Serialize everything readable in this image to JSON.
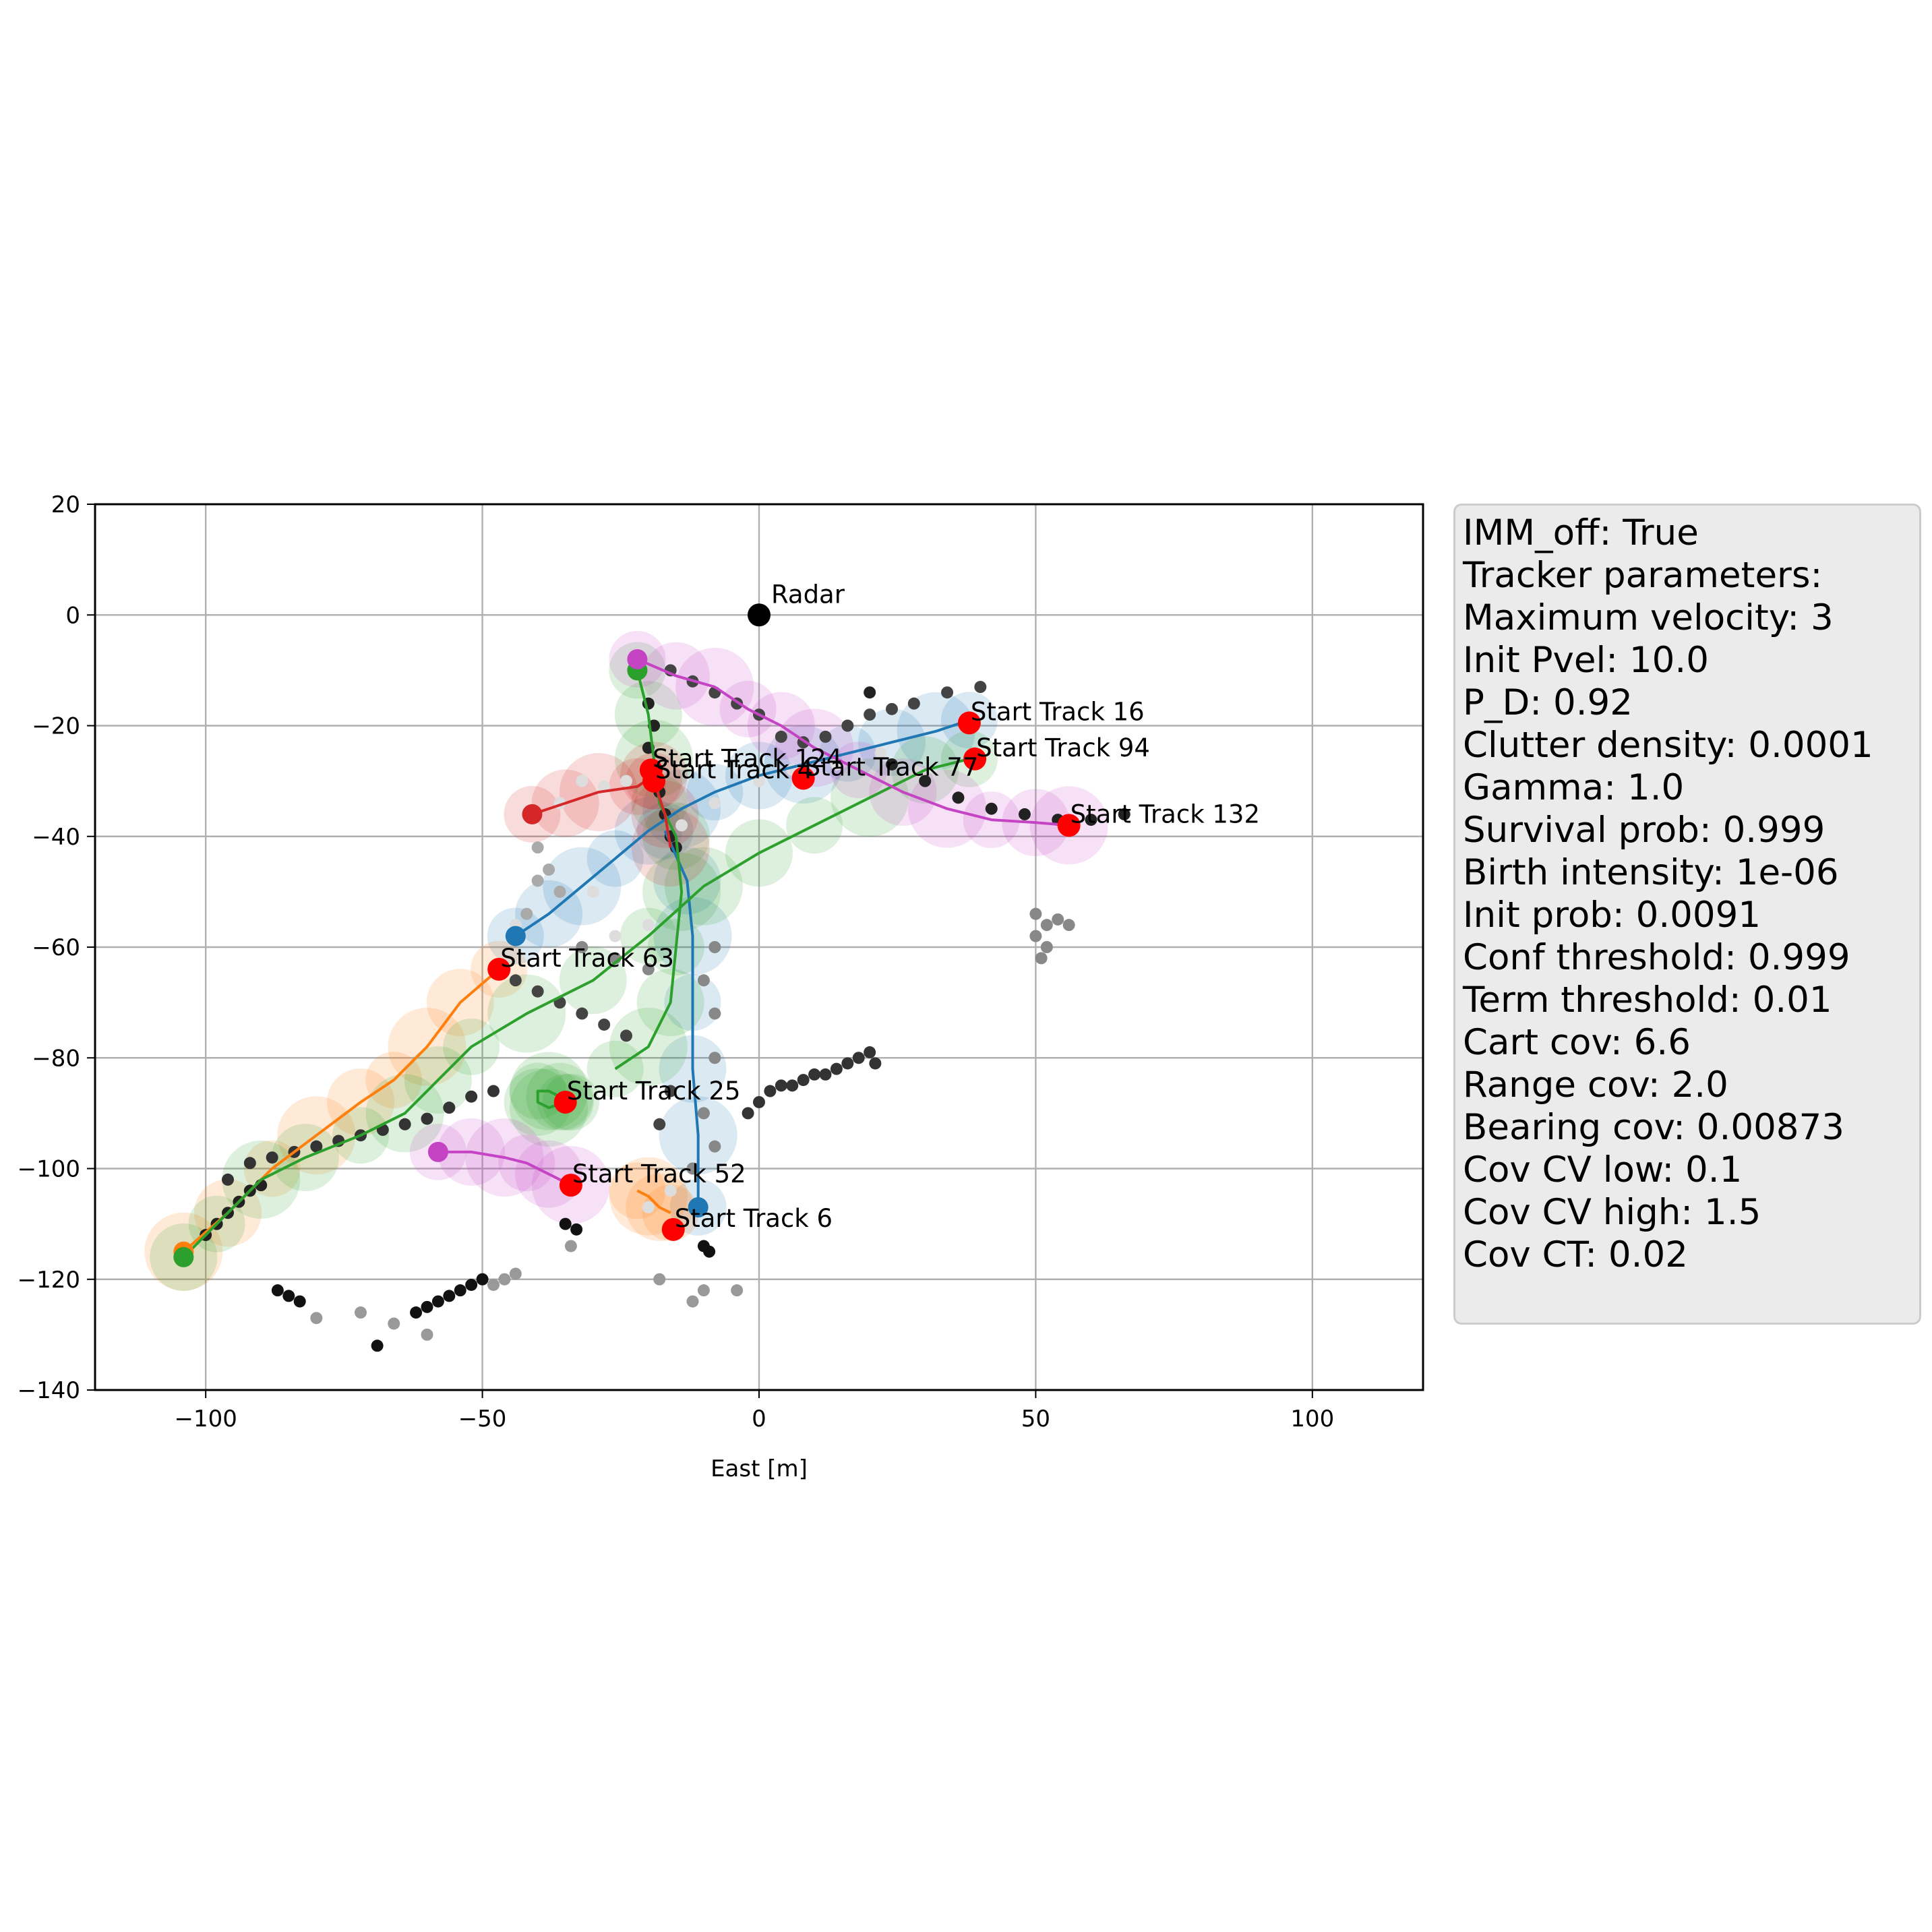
{
  "chart_data": {
    "type": "scatter",
    "title": "",
    "xlabel": "East [m]",
    "ylabel": "",
    "xlim": [
      -120,
      120
    ],
    "ylim": [
      -140,
      20
    ],
    "xticks": [
      -100,
      -50,
      0,
      50,
      100
    ],
    "yticks": [
      20,
      0,
      -20,
      -40,
      -60,
      -80,
      -100,
      -120,
      -140
    ],
    "xtick_labels": [
      "−100",
      "−50",
      "0",
      "50",
      "100"
    ],
    "ytick_labels": [
      "20",
      "0",
      "−20",
      "−40",
      "−60",
      "−80",
      "−100",
      "−120",
      "−140"
    ],
    "grid": true,
    "radar": {
      "label": "Radar",
      "x": 0,
      "y": 0
    },
    "tracks": [
      {
        "color": "#1f77b4",
        "points": [
          [
            -44,
            -58
          ],
          [
            -38,
            -54
          ],
          [
            -32,
            -49
          ],
          [
            -26,
            -44
          ],
          [
            -20,
            -39
          ],
          [
            -14,
            -35
          ],
          [
            -8,
            -32
          ],
          [
            0,
            -29
          ],
          [
            8,
            -27
          ],
          [
            16,
            -25
          ],
          [
            24,
            -23
          ],
          [
            32,
            -21
          ],
          [
            38,
            -19
          ]
        ]
      },
      {
        "color": "#1f77b4",
        "points": [
          [
            -17,
            -39
          ],
          [
            -13,
            -48
          ],
          [
            -12,
            -58
          ],
          [
            -12,
            -70
          ],
          [
            -12,
            -82
          ],
          [
            -11,
            -94
          ],
          [
            -11,
            -107
          ]
        ]
      },
      {
        "color": "#ff7f0e",
        "points": [
          [
            -47,
            -64
          ],
          [
            -54,
            -70
          ],
          [
            -60,
            -78
          ],
          [
            -66,
            -84
          ],
          [
            -72,
            -88
          ],
          [
            -80,
            -94
          ],
          [
            -88,
            -100
          ],
          [
            -96,
            -108
          ],
          [
            -104,
            -115
          ]
        ]
      },
      {
        "color": "#ff7f0e",
        "points": [
          [
            -16,
            -108
          ],
          [
            -18,
            -107
          ],
          [
            -20,
            -105
          ],
          [
            -22,
            -104
          ]
        ]
      },
      {
        "color": "#2ca02c",
        "points": [
          [
            -22,
            -10
          ],
          [
            -20,
            -18
          ],
          [
            -19,
            -26
          ],
          [
            -18,
            -34
          ],
          [
            -15,
            -40
          ],
          [
            -14,
            -50
          ],
          [
            -15,
            -60
          ],
          [
            -16,
            -70
          ],
          [
            -20,
            -78
          ],
          [
            -26,
            -82
          ]
        ]
      },
      {
        "color": "#2ca02c",
        "points": [
          [
            38,
            -26
          ],
          [
            30,
            -28
          ],
          [
            20,
            -33
          ],
          [
            10,
            -38
          ],
          [
            0,
            -43
          ],
          [
            -10,
            -49
          ],
          [
            -20,
            -58
          ],
          [
            -30,
            -66
          ],
          [
            -42,
            -72
          ],
          [
            -52,
            -78
          ],
          [
            -58,
            -84
          ],
          [
            -64,
            -90
          ],
          [
            -72,
            -94
          ],
          [
            -82,
            -98
          ],
          [
            -90,
            -102
          ],
          [
            -98,
            -110
          ],
          [
            -104,
            -116
          ]
        ]
      },
      {
        "color": "#2ca02c",
        "points": [
          [
            -34,
            -88
          ],
          [
            -36,
            -87
          ],
          [
            -38,
            -86
          ],
          [
            -40,
            -86
          ],
          [
            -40,
            -88
          ],
          [
            -38,
            -89
          ],
          [
            -35,
            -88
          ]
        ]
      },
      {
        "color": "#d62728",
        "points": [
          [
            -41,
            -36
          ],
          [
            -35,
            -34
          ],
          [
            -29,
            -32
          ],
          [
            -22,
            -31
          ],
          [
            -19,
            -29
          ]
        ]
      },
      {
        "color": "#d62728",
        "points": [
          [
            -19,
            -30
          ],
          [
            -17,
            -36
          ],
          [
            -16,
            -42
          ]
        ]
      },
      {
        "color": "#c444c4",
        "points": [
          [
            -22,
            -8
          ],
          [
            -15,
            -11
          ],
          [
            -8,
            -13
          ],
          [
            -2,
            -17
          ],
          [
            4,
            -20
          ],
          [
            10,
            -24
          ],
          [
            18,
            -28
          ],
          [
            26,
            -32
          ],
          [
            34,
            -35
          ],
          [
            42,
            -37
          ],
          [
            50,
            -37.5
          ],
          [
            56,
            -38
          ]
        ]
      },
      {
        "color": "#c444c4",
        "points": [
          [
            -58,
            -97
          ],
          [
            -52,
            -97
          ],
          [
            -46,
            -98
          ],
          [
            -42,
            -99
          ],
          [
            -38,
            -101
          ],
          [
            -34,
            -103
          ]
        ]
      }
    ],
    "track_end_markers": [
      {
        "color": "#1f77b4",
        "x": -44,
        "y": -58
      },
      {
        "color": "#1f77b4",
        "x": -11,
        "y": -107
      },
      {
        "color": "#ff7f0e",
        "x": -104,
        "y": -115
      },
      {
        "color": "#2ca02c",
        "x": -22,
        "y": -10
      },
      {
        "color": "#2ca02c",
        "x": -104,
        "y": -116
      },
      {
        "color": "#d62728",
        "x": -41,
        "y": -36
      },
      {
        "color": "#c444c4",
        "x": -22,
        "y": -8
      },
      {
        "color": "#c444c4",
        "x": -58,
        "y": -97
      }
    ],
    "track_starts": [
      {
        "label": "Start Track 16",
        "x": 38,
        "y": -19.5
      },
      {
        "label": "Start Track 94",
        "x": 39,
        "y": -26
      },
      {
        "label": "Start Track 124",
        "x": -19.5,
        "y": -28
      },
      {
        "label": "Start Track 4",
        "x": -19,
        "y": -30
      },
      {
        "label": "Start Track 77",
        "x": 8,
        "y": -29.5
      },
      {
        "label": "Start Track 132",
        "x": 56,
        "y": -38
      },
      {
        "label": "Start Track 63",
        "x": -47,
        "y": -64
      },
      {
        "label": "Start Track 25",
        "x": -35,
        "y": -88
      },
      {
        "label": "Start Track 52",
        "x": -34,
        "y": -103
      },
      {
        "label": "Start Track 6",
        "x": -15.5,
        "y": -111
      }
    ],
    "measurement_clusters": [
      {
        "shade": "#222222",
        "points": [
          [
            -20,
            -16
          ],
          [
            -19,
            -20
          ],
          [
            -20,
            -24
          ],
          [
            -19,
            -28
          ],
          [
            -18,
            -32
          ],
          [
            -17,
            -36
          ],
          [
            -16,
            -40
          ],
          [
            -15,
            -42
          ]
        ]
      },
      {
        "shade": "#444444",
        "points": [
          [
            -16,
            -10
          ],
          [
            -12,
            -12
          ],
          [
            -8,
            -14
          ],
          [
            -4,
            -16
          ],
          [
            0,
            -18
          ],
          [
            4,
            -22
          ],
          [
            8,
            -23
          ],
          [
            12,
            -22
          ],
          [
            16,
            -20
          ],
          [
            20,
            -18
          ],
          [
            24,
            -17
          ],
          [
            28,
            -16
          ],
          [
            34,
            -14
          ],
          [
            40,
            -13
          ]
        ]
      },
      {
        "shade": "#222222",
        "points": [
          [
            20,
            -14
          ],
          [
            24,
            -27
          ],
          [
            30,
            -30
          ],
          [
            36,
            -33
          ],
          [
            42,
            -35
          ],
          [
            48,
            -36
          ],
          [
            54,
            -37
          ],
          [
            60,
            -37
          ],
          [
            66,
            -36
          ]
        ]
      },
      {
        "shade": "#aaaaaa",
        "points": [
          [
            -40,
            -42
          ],
          [
            -38,
            -46
          ],
          [
            -36,
            -50
          ],
          [
            -42,
            -54
          ],
          [
            -40,
            -48
          ]
        ]
      },
      {
        "shade": "#888888",
        "points": [
          [
            50,
            -54
          ],
          [
            52,
            -56
          ],
          [
            54,
            -55
          ],
          [
            56,
            -56
          ],
          [
            50,
            -58
          ],
          [
            52,
            -60
          ],
          [
            51,
            -62
          ]
        ]
      },
      {
        "shade": "#333333",
        "points": [
          [
            -2,
            -90
          ],
          [
            0,
            -88
          ],
          [
            2,
            -86
          ],
          [
            4,
            -85
          ],
          [
            6,
            -85
          ],
          [
            8,
            -84
          ],
          [
            10,
            -83
          ],
          [
            12,
            -83
          ],
          [
            14,
            -82
          ],
          [
            16,
            -81
          ],
          [
            18,
            -80
          ],
          [
            20,
            -79
          ],
          [
            21,
            -81
          ]
        ]
      },
      {
        "shade": "#444444",
        "points": [
          [
            -24,
            -76
          ],
          [
            -28,
            -74
          ],
          [
            -32,
            -72
          ],
          [
            -36,
            -70
          ],
          [
            -40,
            -68
          ],
          [
            -44,
            -66
          ],
          [
            -16,
            -86
          ],
          [
            -18,
            -92
          ]
        ]
      },
      {
        "shade": "#333333",
        "points": [
          [
            -96,
            -102
          ],
          [
            -92,
            -99
          ],
          [
            -88,
            -98
          ],
          [
            -84,
            -97
          ],
          [
            -80,
            -96
          ],
          [
            -76,
            -95
          ],
          [
            -72,
            -94
          ],
          [
            -68,
            -93
          ],
          [
            -64,
            -92
          ],
          [
            -60,
            -91
          ],
          [
            -56,
            -89
          ],
          [
            -52,
            -87
          ],
          [
            -48,
            -86
          ]
        ]
      },
      {
        "shade": "#222222",
        "points": [
          [
            -100,
            -112
          ],
          [
            -98,
            -110
          ],
          [
            -96,
            -108
          ],
          [
            -94,
            -106
          ],
          [
            -92,
            -104
          ],
          [
            -90,
            -103
          ]
        ]
      },
      {
        "shade": "#111111",
        "points": [
          [
            -87,
            -122
          ],
          [
            -85,
            -123
          ],
          [
            -83,
            -124
          ],
          [
            -58,
            -124
          ],
          [
            -56,
            -123
          ],
          [
            -54,
            -122
          ],
          [
            -52,
            -121
          ],
          [
            -50,
            -120
          ],
          [
            -60,
            -125
          ],
          [
            -62,
            -126
          ],
          [
            -69,
            -132
          ]
        ]
      },
      {
        "shade": "#999999",
        "points": [
          [
            -48,
            -121
          ],
          [
            -46,
            -120
          ],
          [
            -44,
            -119
          ],
          [
            -80,
            -127
          ],
          [
            -72,
            -126
          ],
          [
            -66,
            -128
          ],
          [
            -60,
            -130
          ],
          [
            -18,
            -120
          ],
          [
            -10,
            -122
          ],
          [
            -12,
            -124
          ],
          [
            -4,
            -122
          ],
          [
            -34,
            -114
          ]
        ]
      },
      {
        "shade": "#111111",
        "points": [
          [
            -35,
            -110
          ],
          [
            -33,
            -111
          ],
          [
            -10,
            -114
          ],
          [
            -9,
            -115
          ]
        ]
      },
      {
        "shade": "#dddddd",
        "points": [
          [
            -32,
            -30
          ],
          [
            -28,
            -31
          ],
          [
            -24,
            -30
          ],
          [
            -36,
            -34
          ],
          [
            -14,
            -38
          ],
          [
            -8,
            -34
          ],
          [
            0,
            -30
          ],
          [
            6,
            -28
          ],
          [
            14,
            -27
          ],
          [
            22,
            -25
          ],
          [
            -20,
            -56
          ],
          [
            -26,
            -58
          ],
          [
            -30,
            -50
          ],
          [
            -44,
            -56
          ],
          [
            -16,
            -104
          ],
          [
            -20,
            -107
          ]
        ]
      },
      {
        "shade": "#888888",
        "points": [
          [
            -8,
            -72
          ],
          [
            -8,
            -80
          ],
          [
            -10,
            -90
          ],
          [
            -8,
            -96
          ],
          [
            -12,
            -100
          ],
          [
            -20,
            -64
          ],
          [
            -26,
            -62
          ],
          [
            -32,
            -60
          ],
          [
            -8,
            -60
          ],
          [
            -10,
            -66
          ]
        ]
      }
    ]
  },
  "params_box": {
    "lines": [
      "IMM_off: True",
      "Tracker parameters:",
      "Maximum velocity: 3",
      "Init Pvel: 10.0",
      "P_D: 0.92",
      "Clutter density: 0.0001",
      "Gamma: 1.0",
      "Survival prob: 0.999",
      "Birth intensity: 1e-06",
      "Init prob: 0.0091",
      "Conf threshold: 0.999",
      "Term threshold: 0.01",
      "Cart cov: 6.6",
      "Range cov: 2.0",
      "Bearing cov: 0.00873",
      "Cov CV low: 0.1",
      "Cov CV high: 1.5",
      "Cov CT: 0.02"
    ]
  }
}
